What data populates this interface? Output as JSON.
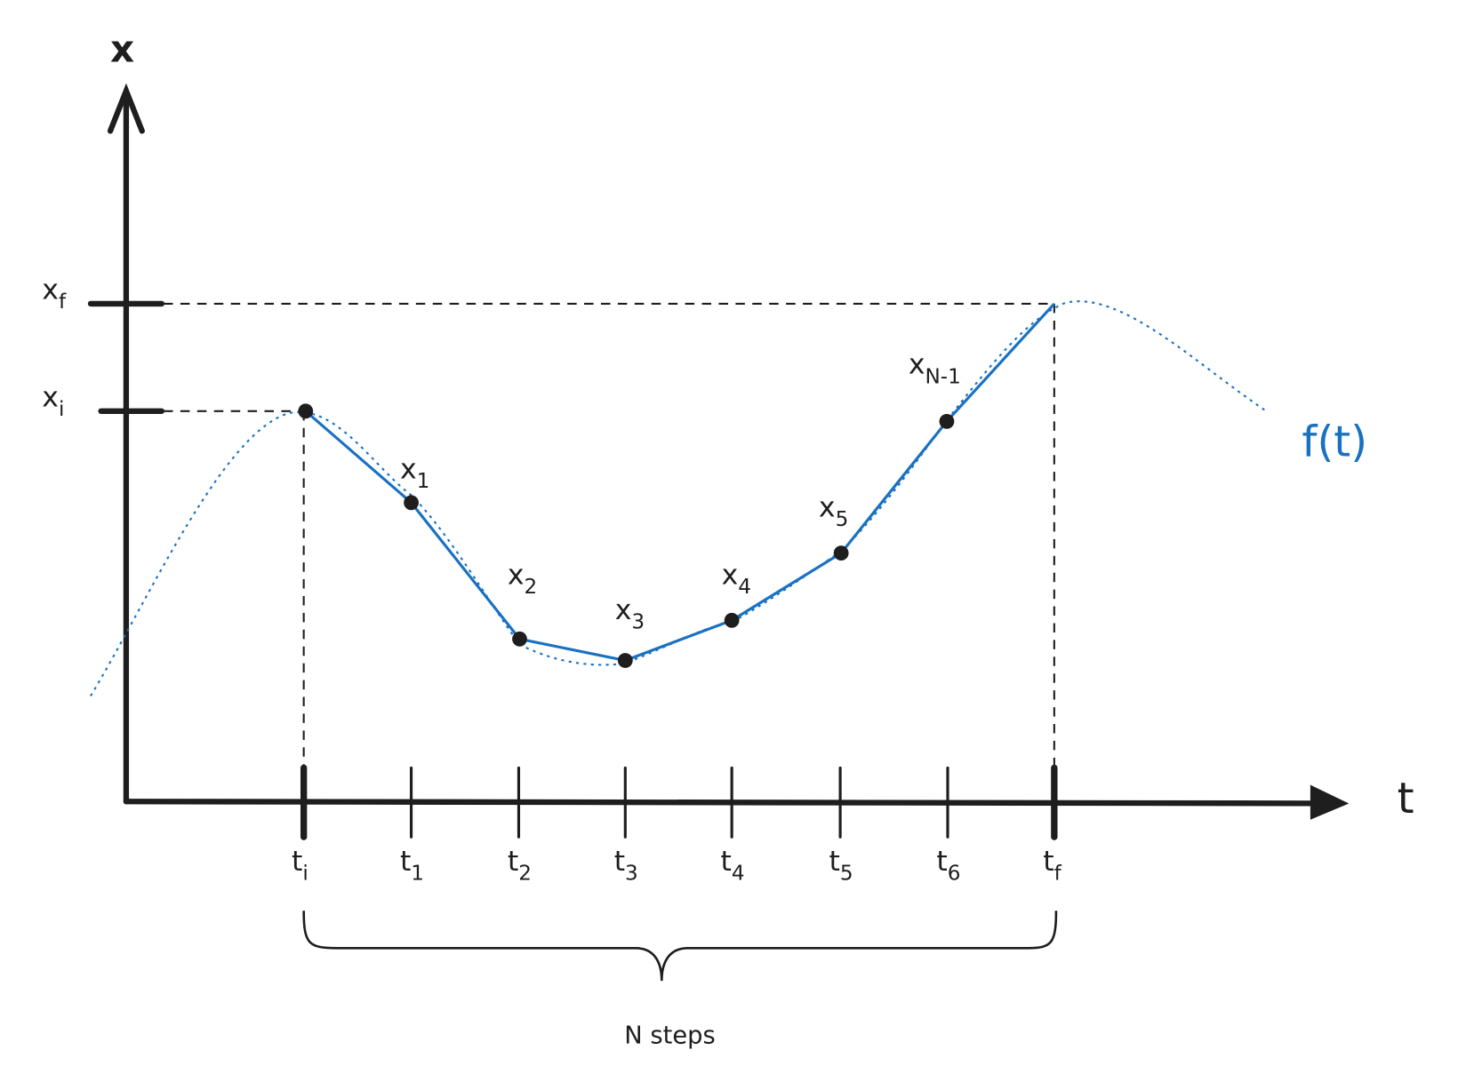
{
  "axes": {
    "y_label": "x",
    "x_label": "t"
  },
  "y_ticks": [
    {
      "main": "x",
      "sub": "f"
    },
    {
      "main": "x",
      "sub": "i"
    }
  ],
  "x_ticks": [
    {
      "main": "t",
      "sub": "i"
    },
    {
      "main": "t",
      "sub": "1"
    },
    {
      "main": "t",
      "sub": "2"
    },
    {
      "main": "t",
      "sub": "3"
    },
    {
      "main": "t",
      "sub": "4"
    },
    {
      "main": "t",
      "sub": "5"
    },
    {
      "main": "t",
      "sub": "6"
    },
    {
      "main": "t",
      "sub": "f"
    }
  ],
  "points": [
    {
      "main": "x",
      "sub": "1"
    },
    {
      "main": "x",
      "sub": "2"
    },
    {
      "main": "x",
      "sub": "3"
    },
    {
      "main": "x",
      "sub": "4"
    },
    {
      "main": "x",
      "sub": "5"
    },
    {
      "main": "x",
      "sub": "N-1"
    }
  ],
  "curve_label": "f(t)",
  "brace_label": "N steps"
}
